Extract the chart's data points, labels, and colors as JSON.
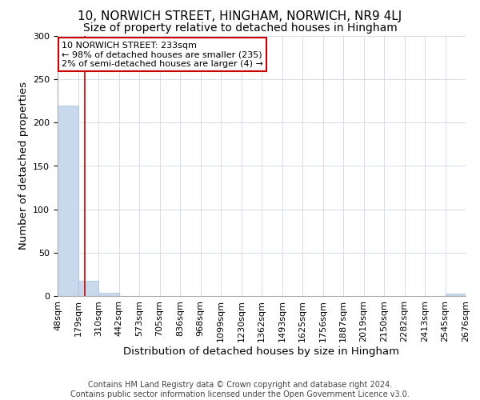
{
  "title": "10, NORWICH STREET, HINGHAM, NORWICH, NR9 4LJ",
  "subtitle": "Size of property relative to detached houses in Hingham",
  "xlabel": "Distribution of detached houses by size in Hingham",
  "ylabel": "Number of detached properties",
  "footer_line1": "Contains HM Land Registry data © Crown copyright and database right 2024.",
  "footer_line2": "Contains public sector information licensed under the Open Government Licence v3.0.",
  "bin_labels": [
    "48sqm",
    "179sqm",
    "310sqm",
    "442sqm",
    "573sqm",
    "705sqm",
    "836sqm",
    "968sqm",
    "1099sqm",
    "1230sqm",
    "1362sqm",
    "1493sqm",
    "1625sqm",
    "1756sqm",
    "1887sqm",
    "2019sqm",
    "2150sqm",
    "2282sqm",
    "2413sqm",
    "2545sqm",
    "2676sqm"
  ],
  "bar_heights": [
    220,
    18,
    4,
    0,
    0,
    0,
    0,
    0,
    0,
    0,
    0,
    0,
    0,
    0,
    0,
    0,
    0,
    0,
    0,
    3
  ],
  "bar_color": "#c8d8ed",
  "bar_edge_color": "#a8c0d8",
  "grid_color": "#d0d8e8",
  "vline_x": 1.33,
  "vline_color": "#cc0000",
  "annotation_text": "10 NORWICH STREET: 233sqm\n← 98% of detached houses are smaller (235)\n2% of semi-detached houses are larger (4) →",
  "annotation_box_color": "#ffffff",
  "annotation_box_edge": "#cc0000",
  "ylim": [
    0,
    300
  ],
  "yticks": [
    0,
    50,
    100,
    150,
    200,
    250,
    300
  ],
  "title_fontsize": 11,
  "subtitle_fontsize": 10,
  "axis_label_fontsize": 9.5,
  "tick_fontsize": 8,
  "annotation_fontsize": 8,
  "footer_fontsize": 7
}
